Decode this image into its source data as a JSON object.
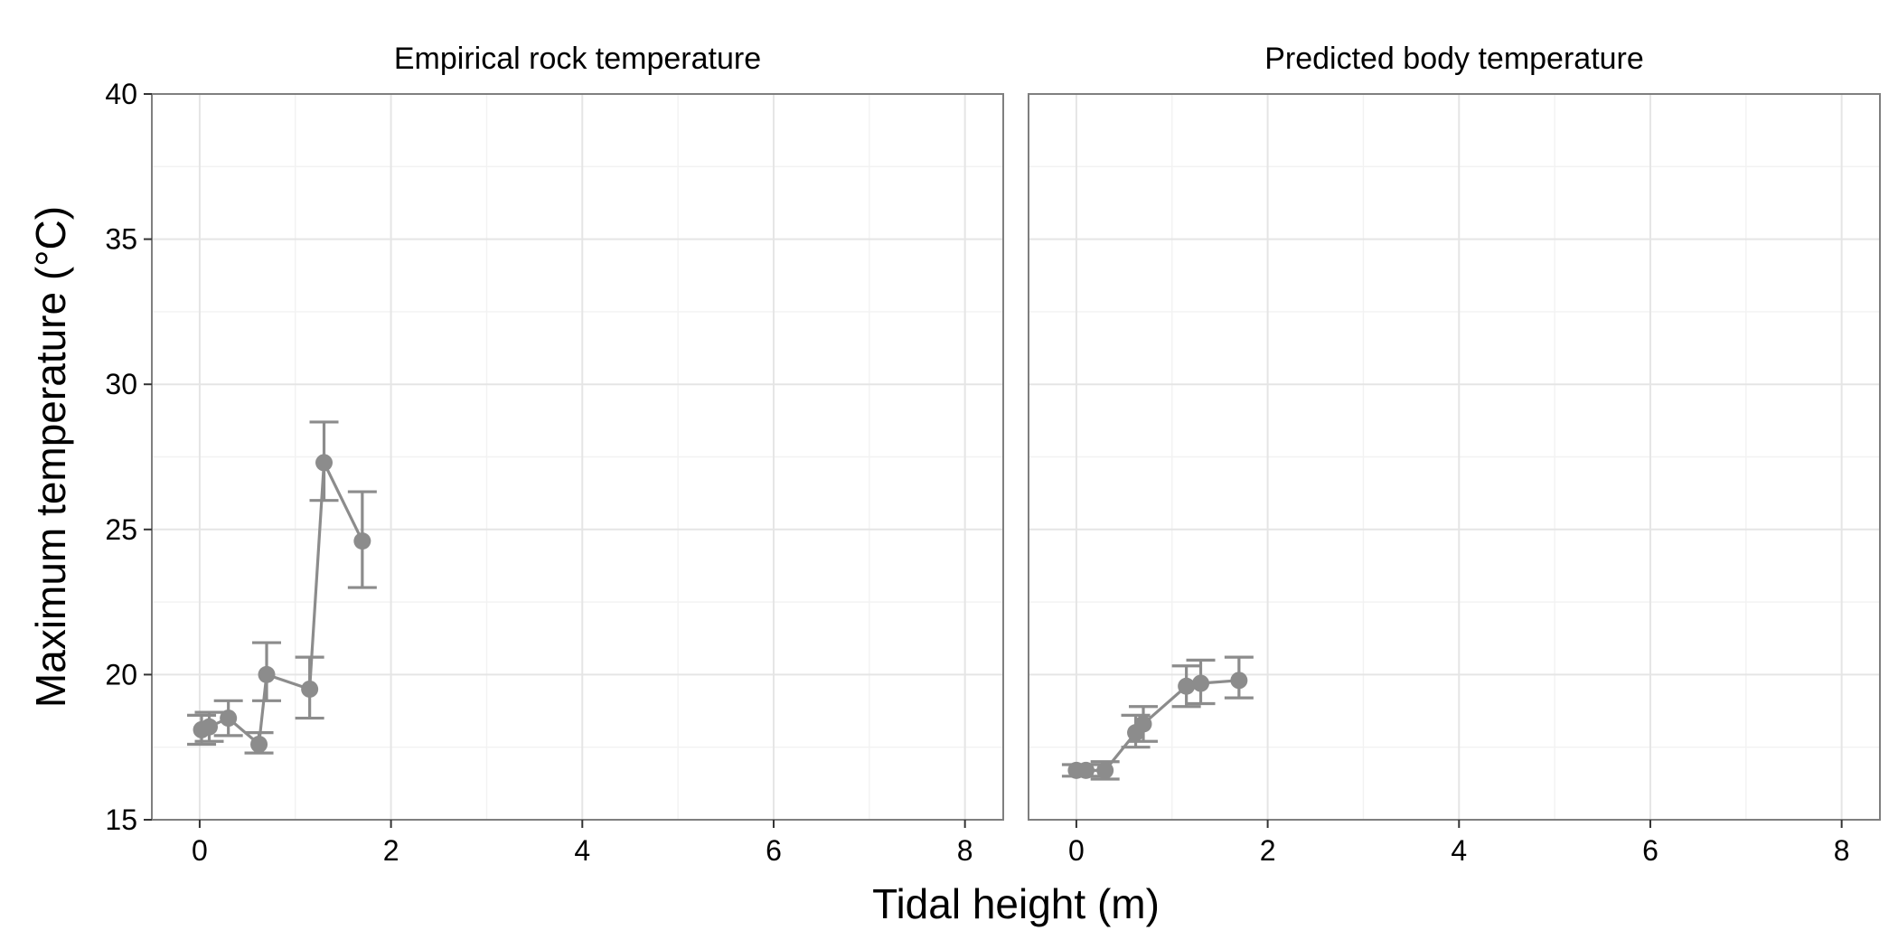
{
  "chart_data": {
    "type": "scatter",
    "xlabel": "Tidal height (m)",
    "ylabel": "Maximum temperature (°C)",
    "xlim": [
      -0.5,
      8.4
    ],
    "ylim": [
      15,
      40
    ],
    "x_ticks": [
      0,
      2,
      4,
      6,
      8
    ],
    "y_ticks": [
      15,
      20,
      25,
      30,
      35,
      40
    ],
    "grid": true,
    "line_color": "#8c8c8c",
    "panels": [
      {
        "title": "Empirical rock temperature",
        "points": [
          {
            "x": 0.02,
            "y": 18.1,
            "lo": 17.6,
            "hi": 18.6
          },
          {
            "x": 0.1,
            "y": 18.2,
            "lo": 17.7,
            "hi": 18.7
          },
          {
            "x": 0.3,
            "y": 18.5,
            "lo": 17.9,
            "hi": 19.1
          },
          {
            "x": 0.62,
            "y": 17.6,
            "lo": 17.3,
            "hi": 18.0
          },
          {
            "x": 0.7,
            "y": 20.0,
            "lo": 19.1,
            "hi": 21.1
          },
          {
            "x": 1.15,
            "y": 19.5,
            "lo": 18.5,
            "hi": 20.6
          },
          {
            "x": 1.3,
            "y": 27.3,
            "lo": 26.0,
            "hi": 28.7
          },
          {
            "x": 1.7,
            "y": 24.6,
            "lo": 23.0,
            "hi": 26.3
          }
        ]
      },
      {
        "title": "Predicted body temperature",
        "points": [
          {
            "x": 0.0,
            "y": 16.7,
            "lo": 16.5,
            "hi": 16.9
          },
          {
            "x": 0.1,
            "y": 16.7,
            "lo": 16.5,
            "hi": 16.9
          },
          {
            "x": 0.3,
            "y": 16.7,
            "lo": 16.4,
            "hi": 17.0
          },
          {
            "x": 0.62,
            "y": 18.0,
            "lo": 17.5,
            "hi": 18.6
          },
          {
            "x": 0.7,
            "y": 18.3,
            "lo": 17.7,
            "hi": 18.9
          },
          {
            "x": 1.15,
            "y": 19.6,
            "lo": 18.9,
            "hi": 20.3
          },
          {
            "x": 1.3,
            "y": 19.7,
            "lo": 19.0,
            "hi": 20.5
          },
          {
            "x": 1.7,
            "y": 19.8,
            "lo": 19.2,
            "hi": 20.6
          }
        ]
      }
    ]
  }
}
